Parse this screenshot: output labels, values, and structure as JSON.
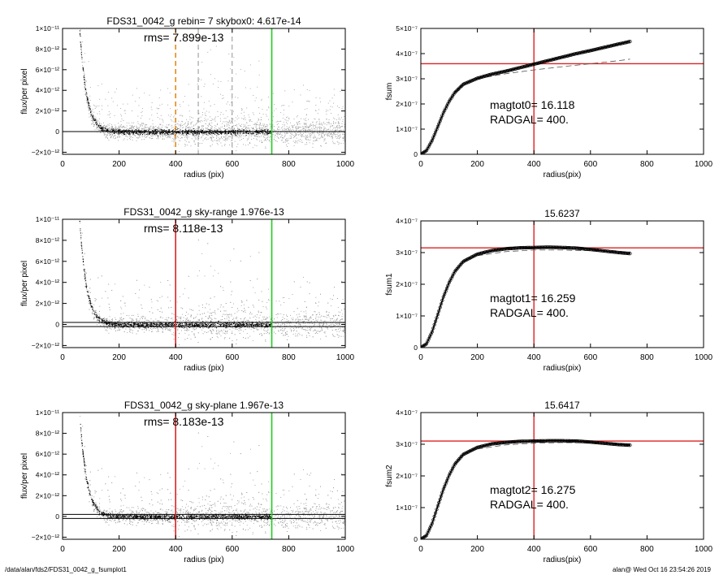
{
  "footer": {
    "path": "/data/alan/fds2/FDS31_0042_g_fsumplot1",
    "stamp": "alan@  Wed Oct 16 23:54:26 2019"
  },
  "colors": {
    "points": "#999999",
    "profile": "#000000",
    "red": "#dd2222",
    "green": "#22cc22",
    "orange": "#e8891a"
  },
  "chart_data": [
    {
      "id": "flux-1",
      "type": "scatter",
      "kind": "flux",
      "title": "FDS31_0042_g rebin= 7    skybox0:  4.617e-14",
      "annotation": "rms= 7.899e-13",
      "xlabel": "radius (pix)",
      "ylabel": "flux/per pixel",
      "xlim": [
        0,
        1000
      ],
      "ylim": [
        -2.2e-12,
        1e-11
      ],
      "xticks": [
        0,
        200,
        400,
        600,
        800,
        1000
      ],
      "xticklabels": [
        "0",
        "200",
        "400",
        "600",
        "800",
        "1000"
      ],
      "yticks": [
        -2e-12,
        0,
        2e-12,
        4e-12,
        6e-12,
        8e-12,
        1e-11
      ],
      "yticklabels": [
        "−2×10⁻¹²",
        "0",
        "2×10⁻¹²",
        "4×10⁻¹²",
        "6×10⁻¹²",
        "8×10⁻¹²",
        "1×10⁻¹¹"
      ],
      "vlines": [
        {
          "x": 400,
          "color": "orange",
          "style": "dashed"
        },
        {
          "x": 480,
          "color": "gray",
          "style": "dashed"
        },
        {
          "x": 600,
          "color": "gray",
          "style": "dashed"
        },
        {
          "x": 740,
          "color": "green",
          "style": "solid"
        }
      ],
      "hlines": [
        {
          "y": 0,
          "color": "black"
        }
      ]
    },
    {
      "id": "fsum-1",
      "type": "line",
      "kind": "fsum",
      "title": "",
      "annotations": [
        "magtot0=  16.118",
        "RADGAL=    400."
      ],
      "xlabel": "radius(pix)",
      "ylabel": "fsum",
      "xlim": [
        0,
        1000
      ],
      "ylim": [
        0,
        5e-07
      ],
      "xticks": [
        0,
        200,
        400,
        600,
        800,
        1000
      ],
      "xticklabels": [
        "0",
        "200",
        "400",
        "600",
        "800",
        "1000"
      ],
      "yticks": [
        0,
        1e-07,
        2e-07,
        3e-07,
        4e-07,
        5e-07
      ],
      "yticklabels": [
        "0",
        "1×10⁻⁷",
        "2×10⁻⁷",
        "3×10⁻⁷",
        "4×10⁻⁷",
        "5×10⁻⁷"
      ],
      "vline": 400,
      "hline": 3.6e-07,
      "curve": {
        "x": [
          0,
          20,
          40,
          60,
          80,
          100,
          120,
          150,
          200,
          250,
          300,
          350,
          400,
          450,
          500,
          550,
          600,
          650,
          700,
          740
        ],
        "y": [
          0,
          1.5e-08,
          5.5e-08,
          1.1e-07,
          1.65e-07,
          2.1e-07,
          2.45e-07,
          2.78e-07,
          3.02e-07,
          3.18e-07,
          3.3e-07,
          3.44e-07,
          3.58e-07,
          3.72e-07,
          3.86e-07,
          4e-07,
          4.12e-07,
          4.25e-07,
          4.38e-07,
          4.48e-07
        ]
      },
      "model": {
        "x": [
          200,
          300,
          400,
          500,
          600,
          700,
          740
        ],
        "y": [
          3e-07,
          3.2e-07,
          3.35e-07,
          3.48e-07,
          3.6e-07,
          3.72e-07,
          3.78e-07
        ]
      }
    },
    {
      "id": "flux-2",
      "type": "scatter",
      "kind": "flux",
      "title": "FDS31_0042_g sky-range  1.976e-13",
      "annotation": "rms= 8.118e-13",
      "xlabel": "radius (pix)",
      "ylabel": "flux/per pixel",
      "xlim": [
        0,
        1000
      ],
      "ylim": [
        -2.2e-12,
        1e-11
      ],
      "xticks": [
        0,
        200,
        400,
        600,
        800,
        1000
      ],
      "xticklabels": [
        "0",
        "200",
        "400",
        "600",
        "800",
        "1000"
      ],
      "yticks": [
        -2e-12,
        0,
        2e-12,
        4e-12,
        6e-12,
        8e-12,
        1e-11
      ],
      "yticklabels": [
        "−2×10⁻¹²",
        "0",
        "2×10⁻¹²",
        "4×10⁻¹²",
        "6×10⁻¹²",
        "8×10⁻¹²",
        "1×10⁻¹¹"
      ],
      "vlines": [
        {
          "x": 400,
          "color": "red",
          "style": "solid"
        },
        {
          "x": 740,
          "color": "green",
          "style": "solid"
        }
      ],
      "hlines": [
        {
          "y": 1.976e-13,
          "color": "black"
        },
        {
          "y": -1.976e-13,
          "color": "black"
        }
      ]
    },
    {
      "id": "fsum-2",
      "type": "line",
      "kind": "fsum",
      "title": "15.6237",
      "annotations": [
        "magtot1=  16.259",
        "RADGAL=    400."
      ],
      "xlabel": "radius(pix)",
      "ylabel": "fsum1",
      "xlim": [
        0,
        1000
      ],
      "ylim": [
        0,
        4e-07
      ],
      "xticks": [
        0,
        200,
        400,
        600,
        800,
        1000
      ],
      "xticklabels": [
        "0",
        "200",
        "400",
        "600",
        "800",
        "1000"
      ],
      "yticks": [
        0,
        1e-07,
        2e-07,
        3e-07,
        4e-07
      ],
      "yticklabels": [
        "0",
        "1×10⁻⁷",
        "2×10⁻⁷",
        "3×10⁻⁷",
        "4×10⁻⁷"
      ],
      "vline": 400,
      "hline": 3.15e-07,
      "curve": {
        "x": [
          0,
          20,
          40,
          60,
          80,
          100,
          120,
          150,
          200,
          250,
          300,
          350,
          400,
          450,
          500,
          550,
          600,
          650,
          700,
          740
        ],
        "y": [
          0,
          1.2e-08,
          5e-08,
          1.05e-07,
          1.6e-07,
          2.05e-07,
          2.4e-07,
          2.72e-07,
          2.95e-07,
          3.06e-07,
          3.12e-07,
          3.15e-07,
          3.16e-07,
          3.17e-07,
          3.16e-07,
          3.14e-07,
          3.1e-07,
          3.05e-07,
          3e-07,
          2.97e-07
        ]
      },
      "model": {
        "x": [
          200,
          300,
          400,
          500,
          600,
          700,
          740
        ],
        "y": [
          2.9e-07,
          3.03e-07,
          3.08e-07,
          3.08e-07,
          3.06e-07,
          3.03e-07,
          3.02e-07
        ]
      }
    },
    {
      "id": "flux-3",
      "type": "scatter",
      "kind": "flux",
      "title": "FDS31_0042_g sky-plane  1.967e-13",
      "annotation": "rms= 8.183e-13",
      "xlabel": "radius (pix)",
      "ylabel": "flux/per pixel",
      "xlim": [
        0,
        1000
      ],
      "ylim": [
        -2.2e-12,
        1e-11
      ],
      "xticks": [
        0,
        200,
        400,
        600,
        800,
        1000
      ],
      "xticklabels": [
        "0",
        "200",
        "400",
        "600",
        "800",
        "1000"
      ],
      "yticks": [
        -2e-12,
        0,
        2e-12,
        4e-12,
        6e-12,
        8e-12,
        1e-11
      ],
      "yticklabels": [
        "−2×10⁻¹²",
        "0",
        "2×10⁻¹²",
        "4×10⁻¹²",
        "6×10⁻¹²",
        "8×10⁻¹²",
        "1×10⁻¹¹"
      ],
      "vlines": [
        {
          "x": 400,
          "color": "red",
          "style": "solid"
        },
        {
          "x": 740,
          "color": "green",
          "style": "solid"
        }
      ],
      "hlines": [
        {
          "y": 1.967e-13,
          "color": "black"
        },
        {
          "y": -1.967e-13,
          "color": "black"
        }
      ]
    },
    {
      "id": "fsum-3",
      "type": "line",
      "kind": "fsum",
      "title": "15.6417",
      "annotations": [
        "magtot2=  16.275",
        "RADGAL=    400."
      ],
      "xlabel": "radius(pix)",
      "ylabel": "fsum2",
      "xlim": [
        0,
        1000
      ],
      "ylim": [
        0,
        4e-07
      ],
      "xticks": [
        0,
        200,
        400,
        600,
        800,
        1000
      ],
      "xticklabels": [
        "0",
        "200",
        "400",
        "600",
        "800",
        "1000"
      ],
      "yticks": [
        0,
        1e-07,
        2e-07,
        3e-07,
        4e-07
      ],
      "yticklabels": [
        "0",
        "1×10⁻⁷",
        "2×10⁻⁷",
        "3×10⁻⁷",
        "4×10⁻⁷"
      ],
      "vline": 400,
      "hline": 3.1e-07,
      "curve": {
        "x": [
          0,
          20,
          40,
          60,
          80,
          100,
          120,
          150,
          200,
          250,
          300,
          350,
          400,
          450,
          500,
          550,
          600,
          650,
          700,
          740
        ],
        "y": [
          0,
          1.2e-08,
          5e-08,
          1.05e-07,
          1.58e-07,
          2.02e-07,
          2.37e-07,
          2.68e-07,
          2.9e-07,
          3.01e-07,
          3.06e-07,
          3.09e-07,
          3.1e-07,
          3.11e-07,
          3.11e-07,
          3.1e-07,
          3.07e-07,
          3.03e-07,
          2.99e-07,
          2.97e-07
        ]
      },
      "model": {
        "x": [
          200,
          300,
          400,
          500,
          600,
          700,
          740
        ],
        "y": [
          2.85e-07,
          2.98e-07,
          3.03e-07,
          3.05e-07,
          3.04e-07,
          3.02e-07,
          3.01e-07
        ]
      }
    }
  ]
}
